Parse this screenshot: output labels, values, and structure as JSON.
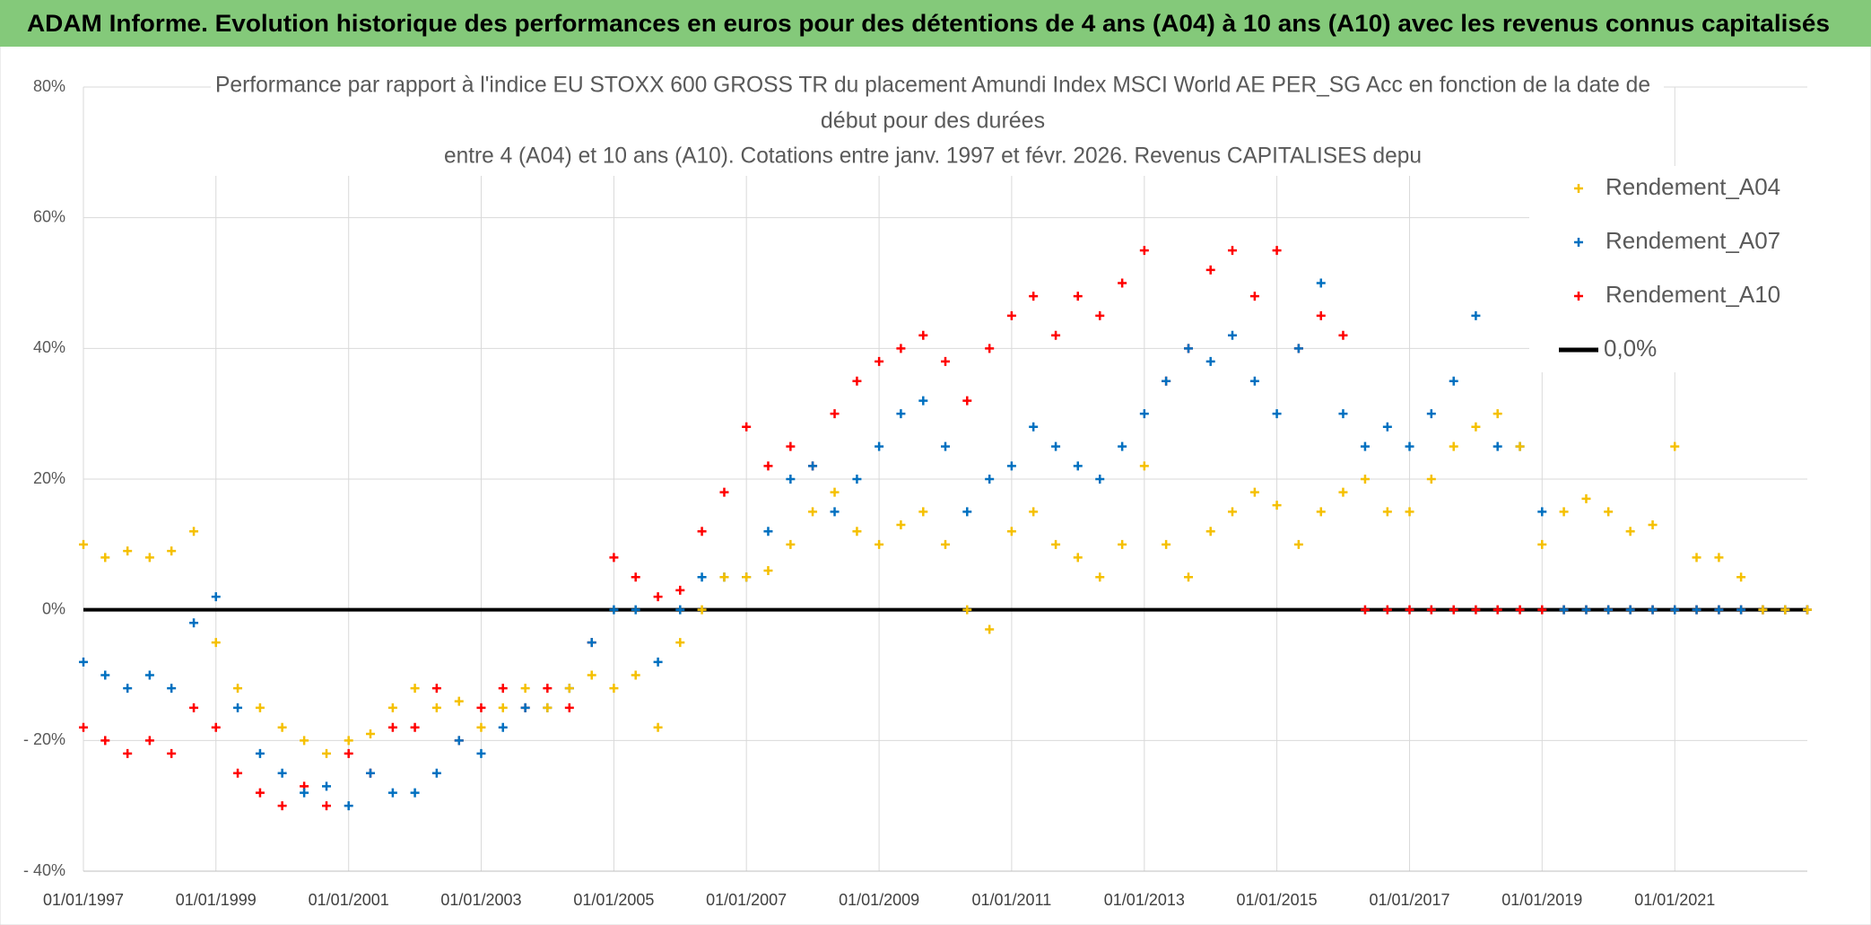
{
  "header": {
    "title": "ADAM Informe. Evolution historique des performances en euros pour des détentions de 4 ans (A04) à 10 ans (A10) avec les revenus connus capitalisés"
  },
  "chart_data": {
    "type": "scatter",
    "title": [
      "Performance  par rapport à l'indice EU STOXX 600 GROSS TR  du placement Amundi Index MSCI World AE PER_SG Acc en fonction de la date de",
      "début pour des durées",
      "entre 4 (A04) et 10 ans (A10). Cotations entre janv. 1997 et févr. 2026. Revenus CAPITALISES depu"
    ],
    "x": [
      "01/01/1997",
      "01/05/1997",
      "01/09/1997",
      "01/01/1998",
      "01/05/1998",
      "01/09/1998",
      "01/01/1999",
      "01/05/1999",
      "01/09/1999",
      "01/01/2000",
      "01/05/2000",
      "01/09/2000",
      "01/01/2001",
      "01/05/2001",
      "01/09/2001",
      "01/01/2002",
      "01/05/2002",
      "01/09/2002",
      "01/01/2003",
      "01/05/2003",
      "01/09/2003",
      "01/01/2004",
      "01/05/2004",
      "01/09/2004",
      "01/01/2005",
      "01/05/2005",
      "01/09/2005",
      "01/01/2006",
      "01/05/2006",
      "01/09/2006",
      "01/01/2007",
      "01/05/2007",
      "01/09/2007",
      "01/01/2008",
      "01/05/2008",
      "01/09/2008",
      "01/01/2009",
      "01/05/2009",
      "01/09/2009",
      "01/01/2010",
      "01/05/2010",
      "01/09/2010",
      "01/01/2011",
      "01/05/2011",
      "01/09/2011",
      "01/01/2012",
      "01/05/2012",
      "01/09/2012",
      "01/01/2013",
      "01/05/2013",
      "01/09/2013",
      "01/01/2014",
      "01/05/2014",
      "01/09/2014",
      "01/01/2015",
      "01/05/2015",
      "01/09/2015",
      "01/01/2016",
      "01/05/2016",
      "01/09/2016",
      "01/01/2017",
      "01/05/2017",
      "01/09/2017",
      "01/01/2018",
      "01/05/2018",
      "01/09/2018",
      "01/01/2019",
      "01/05/2019",
      "01/09/2019",
      "01/01/2020",
      "01/05/2020",
      "01/09/2020",
      "01/01/2021",
      "01/05/2021",
      "01/09/2021",
      "01/01/2022",
      "01/05/2022",
      "01/09/2022",
      "01/01/2023"
    ],
    "series": [
      {
        "name": "Rendement_A04",
        "color": "#f5c000",
        "style": "marker",
        "values": [
          10,
          8,
          9,
          8,
          9,
          12,
          -5,
          -12,
          -15,
          -18,
          -20,
          -22,
          -20,
          -19,
          -15,
          -12,
          -15,
          -14,
          -18,
          -15,
          -12,
          -15,
          -12,
          -10,
          -12,
          -10,
          -18,
          -5,
          0,
          5,
          5,
          6,
          10,
          15,
          18,
          12,
          10,
          13,
          15,
          10,
          0,
          -3,
          12,
          15,
          10,
          8,
          5,
          10,
          22,
          10,
          5,
          12,
          15,
          18,
          16,
          10,
          15,
          18,
          20,
          15,
          15,
          20,
          25,
          28,
          30,
          25,
          10,
          15,
          17,
          15,
          12,
          13,
          25,
          8,
          8,
          5,
          0,
          0,
          0
        ]
      },
      {
        "name": "Rendement_A07",
        "color": "#0070c0",
        "style": "marker",
        "values": [
          -8,
          -10,
          -12,
          -10,
          -12,
          -2,
          2,
          -15,
          -22,
          -25,
          -28,
          -27,
          -30,
          -25,
          -28,
          -28,
          -25,
          -20,
          -22,
          -18,
          -15,
          -15,
          -12,
          -5,
          0,
          0,
          -8,
          0,
          5,
          5,
          5,
          12,
          20,
          22,
          15,
          20,
          25,
          30,
          32,
          25,
          15,
          20,
          22,
          28,
          25,
          22,
          20,
          25,
          30,
          35,
          40,
          38,
          42,
          35,
          30,
          40,
          50,
          30,
          25,
          28,
          25,
          30,
          35,
          45,
          25,
          25,
          15,
          0,
          0,
          0,
          0,
          0,
          0,
          0,
          0,
          0,
          0,
          0,
          0
        ]
      },
      {
        "name": "Rendement_A10",
        "color": "#ff0000",
        "style": "marker",
        "values": [
          -18,
          -20,
          -22,
          -20,
          -22,
          -15,
          -18,
          -25,
          -28,
          -30,
          -27,
          -30,
          -22,
          -25,
          -18,
          -18,
          -12,
          -20,
          -15,
          -12,
          -15,
          -12,
          -15,
          -5,
          8,
          5,
          2,
          3,
          12,
          18,
          28,
          22,
          25,
          22,
          30,
          35,
          38,
          40,
          42,
          38,
          32,
          40,
          45,
          48,
          42,
          48,
          45,
          50,
          55,
          35,
          40,
          52,
          55,
          48,
          55,
          40,
          45,
          42,
          0,
          0,
          0,
          0,
          0,
          0,
          0,
          0,
          0,
          0,
          0,
          0,
          0,
          0,
          0,
          0,
          0,
          0,
          0,
          0,
          0
        ]
      },
      {
        "name": "0,0%",
        "color": "#000000",
        "style": "line",
        "values": [
          0,
          0,
          0,
          0,
          0,
          0,
          0,
          0,
          0,
          0,
          0,
          0,
          0,
          0,
          0,
          0,
          0,
          0,
          0,
          0,
          0,
          0,
          0,
          0,
          0,
          0,
          0,
          0,
          0,
          0,
          0,
          0,
          0,
          0,
          0,
          0,
          0,
          0,
          0,
          0,
          0,
          0,
          0,
          0,
          0,
          0,
          0,
          0,
          0,
          0,
          0,
          0,
          0,
          0,
          0,
          0,
          0,
          0,
          0,
          0,
          0,
          0,
          0,
          0,
          0,
          0,
          0,
          0,
          0,
          0,
          0,
          0,
          0,
          0,
          0,
          0,
          0,
          0,
          0
        ]
      }
    ],
    "xlim": [
      "01/01/1997",
      "01/01/2023"
    ],
    "xticks": [
      "01/01/1997",
      "01/01/1999",
      "01/01/2001",
      "01/01/2003",
      "01/01/2005",
      "01/01/2007",
      "01/01/2009",
      "01/01/2011",
      "01/01/2013",
      "01/01/2015",
      "01/01/2017",
      "01/01/2019",
      "01/01/2021"
    ],
    "ylim": [
      -40,
      80
    ],
    "yticks": [
      {
        "value": 80,
        "label": "80%"
      },
      {
        "value": 60,
        "label": "60%"
      },
      {
        "value": 40,
        "label": "40%"
      },
      {
        "value": 20,
        "label": "20%"
      },
      {
        "value": 0,
        "label": "0%"
      },
      {
        "value": -20,
        "label": "- 20%"
      },
      {
        "value": -40,
        "label": "- 40%"
      }
    ],
    "grid": true,
    "legend": "top-right"
  }
}
